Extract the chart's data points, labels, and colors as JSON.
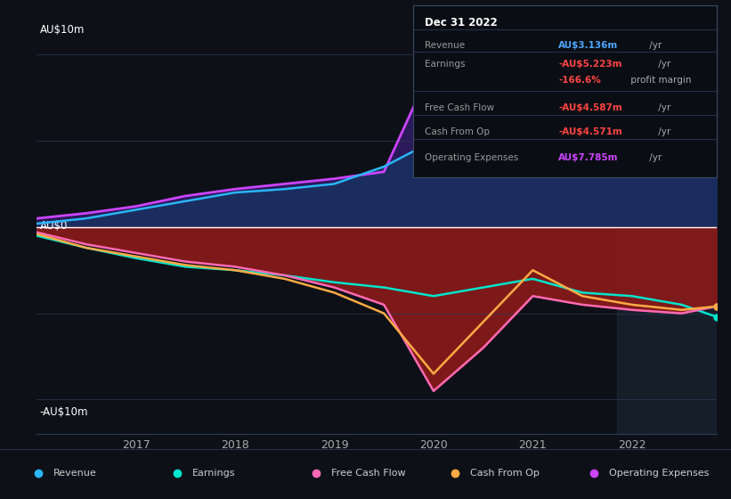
{
  "background_color": "#0d1117",
  "plot_bg_color": "#0d1117",
  "title_box": {
    "date": "Dec 31 2022",
    "rows": [
      {
        "label": "Revenue",
        "value": "AU$3.136m",
        "value_color": "#4da6ff",
        "suffix": " /yr"
      },
      {
        "label": "Earnings",
        "value": "-AU$5.223m",
        "value_color": "#ff4444",
        "suffix": " /yr"
      },
      {
        "label": "",
        "value": "-166.6%",
        "value_color": "#ff4444",
        "suffix": " profit margin"
      },
      {
        "label": "Free Cash Flow",
        "value": "-AU$4.587m",
        "value_color": "#ff4444",
        "suffix": " /yr"
      },
      {
        "label": "Cash From Op",
        "value": "-AU$4.571m",
        "value_color": "#ff4444",
        "suffix": " /yr"
      },
      {
        "label": "Operating Expenses",
        "value": "AU$7.785m",
        "value_color": "#cc44ff",
        "suffix": " /yr"
      }
    ]
  },
  "ylabel_top": "AU$10m",
  "ylabel_zero": "AU$0",
  "ylabel_bottom": "-AU$10m",
  "x_ticks": [
    2017,
    2018,
    2019,
    2020,
    2021,
    2022
  ],
  "x_range": [
    2016.0,
    2022.85
  ],
  "y_range": [
    -12,
    12
  ],
  "series": {
    "revenue": {
      "color": "#29b6f6",
      "fill_color": "#1a3060",
      "label": "Revenue",
      "x": [
        2016.0,
        2016.5,
        2017.0,
        2017.5,
        2018.0,
        2018.5,
        2019.0,
        2019.5,
        2020.0,
        2020.5,
        2021.0,
        2021.5,
        2022.0,
        2022.5,
        2022.85
      ],
      "y": [
        0.2,
        0.5,
        1.0,
        1.5,
        2.0,
        2.2,
        2.5,
        3.5,
        5.0,
        5.8,
        6.2,
        6.0,
        5.5,
        4.8,
        3.1
      ]
    },
    "earnings": {
      "color": "#00e5cc",
      "label": "Earnings",
      "x": [
        2016.0,
        2016.5,
        2017.0,
        2017.5,
        2018.0,
        2018.5,
        2019.0,
        2019.5,
        2020.0,
        2020.5,
        2021.0,
        2021.5,
        2022.0,
        2022.5,
        2022.85
      ],
      "y": [
        -0.5,
        -1.2,
        -1.8,
        -2.3,
        -2.5,
        -2.8,
        -3.2,
        -3.5,
        -4.0,
        -3.5,
        -3.0,
        -3.8,
        -4.0,
        -4.5,
        -5.2
      ]
    },
    "free_cash_flow": {
      "color": "#ff69b4",
      "fill_color": "#8b1a1a",
      "label": "Free Cash Flow",
      "x": [
        2016.0,
        2016.5,
        2017.0,
        2017.5,
        2018.0,
        2018.5,
        2019.0,
        2019.5,
        2020.0,
        2020.5,
        2021.0,
        2021.5,
        2022.0,
        2022.5,
        2022.85
      ],
      "y": [
        -0.3,
        -1.0,
        -1.5,
        -2.0,
        -2.3,
        -2.8,
        -3.5,
        -4.5,
        -9.5,
        -7.0,
        -4.0,
        -4.5,
        -4.8,
        -5.0,
        -4.6
      ]
    },
    "cash_from_op": {
      "color": "#ffaa44",
      "label": "Cash From Op",
      "x": [
        2016.0,
        2016.5,
        2017.0,
        2017.5,
        2018.0,
        2018.5,
        2019.0,
        2019.5,
        2020.0,
        2020.5,
        2021.0,
        2021.5,
        2022.0,
        2022.5,
        2022.85
      ],
      "y": [
        -0.4,
        -1.2,
        -1.7,
        -2.2,
        -2.5,
        -3.0,
        -3.8,
        -5.0,
        -8.5,
        -5.5,
        -2.5,
        -4.0,
        -4.5,
        -4.8,
        -4.6
      ]
    },
    "operating_expenses": {
      "color": "#cc44ff",
      "fill_color": "#2d1b5e",
      "label": "Operating Expenses",
      "x": [
        2016.0,
        2016.5,
        2017.0,
        2017.5,
        2018.0,
        2018.5,
        2019.0,
        2019.5,
        2020.0,
        2020.5,
        2021.0,
        2021.5,
        2022.0,
        2022.5,
        2022.85
      ],
      "y": [
        0.5,
        0.8,
        1.2,
        1.8,
        2.2,
        2.5,
        2.8,
        3.2,
        9.5,
        8.0,
        8.5,
        8.8,
        8.2,
        7.8,
        7.8
      ]
    }
  },
  "highlight_span": [
    2021.85,
    2022.85
  ],
  "legend": [
    {
      "label": "Revenue",
      "color": "#29b6f6"
    },
    {
      "label": "Earnings",
      "color": "#00e5cc"
    },
    {
      "label": "Free Cash Flow",
      "color": "#ff69b4"
    },
    {
      "label": "Cash From Op",
      "color": "#ffaa44"
    },
    {
      "label": "Operating Expenses",
      "color": "#cc44ff"
    }
  ]
}
